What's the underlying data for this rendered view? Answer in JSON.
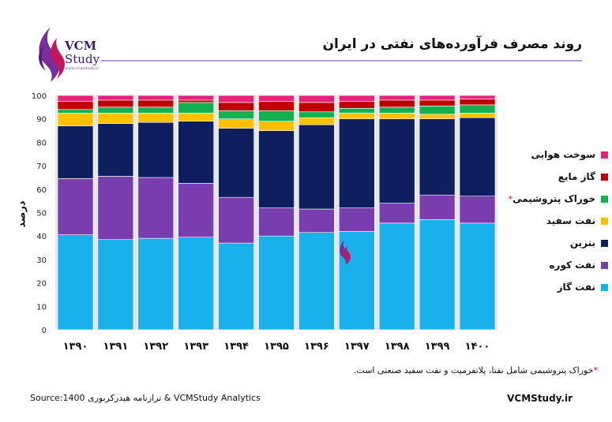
{
  "logo": {
    "name": "VCM",
    "sub": "Study",
    "url": "www.vcmstudy.ir"
  },
  "title": "روند مصرف فرآورده‌های نفتی در ایران",
  "footnote": {
    "star": "*",
    "text": "خوراک پتروشیمی شامل نفتا، پلاتفرمیت و نفت سفید صنعتی است."
  },
  "source": "Source:1400 ترازنامه هیدرکربوری & VCMStudy Analytics",
  "site": "VCMStudy.ir",
  "chart_data": {
    "type": "bar",
    "stacked": true,
    "categories": [
      "۱۳۹۰",
      "۱۳۹۱",
      "۱۳۹۲",
      "۱۳۹۳",
      "۱۳۹۴",
      "۱۳۹۵",
      "۱۳۹۶",
      "۱۳۹۷",
      "۱۳۹۸",
      "۱۳۹۹",
      "۱۴۰۰"
    ],
    "ylabel": "درصد",
    "ylim": [
      0,
      100
    ],
    "yticks": [
      "0",
      "10",
      "20",
      "30",
      "40",
      "50",
      "60",
      "70",
      "80",
      "90",
      "100"
    ],
    "legend_position": "right",
    "series": [
      {
        "name": "نفت گاز",
        "color": "#1ab0ec",
        "values": [
          40.5,
          38.5,
          39,
          39.5,
          37,
          40,
          41.5,
          42,
          45.5,
          47,
          45.5
        ]
      },
      {
        "name": "نفت کوره",
        "color": "#7a3db0",
        "values": [
          24,
          27,
          26,
          23,
          19.5,
          12,
          10,
          10,
          8.5,
          10.5,
          11.5
        ]
      },
      {
        "name": "بنزین",
        "color": "#0d1f5e",
        "values": [
          22.5,
          22.5,
          23.5,
          26.5,
          29.5,
          33,
          36,
          38,
          36,
          32.5,
          33.5
        ]
      },
      {
        "name": "نفت سفید",
        "color": "#ffc000",
        "values": [
          5.5,
          4.5,
          4,
          3.5,
          4,
          4,
          3,
          2.5,
          2.5,
          2,
          2
        ]
      },
      {
        "name": "خوراک پتروشیمی",
        "color": "#12b050",
        "values": [
          1.5,
          2.5,
          2.5,
          4.5,
          3.5,
          4.5,
          2.5,
          2,
          2.5,
          3.5,
          3.5
        ]
      },
      {
        "name": "گاز مایع",
        "color": "#c00000",
        "values": [
          3.5,
          3,
          3,
          1,
          3.5,
          4,
          4,
          3,
          3,
          2.5,
          2.5
        ]
      },
      {
        "name": "سوخت هوایی",
        "color": "#e8217a",
        "values": [
          2.5,
          2,
          2,
          2,
          3,
          2.5,
          3,
          2.5,
          2,
          2,
          1.5
        ]
      }
    ]
  }
}
